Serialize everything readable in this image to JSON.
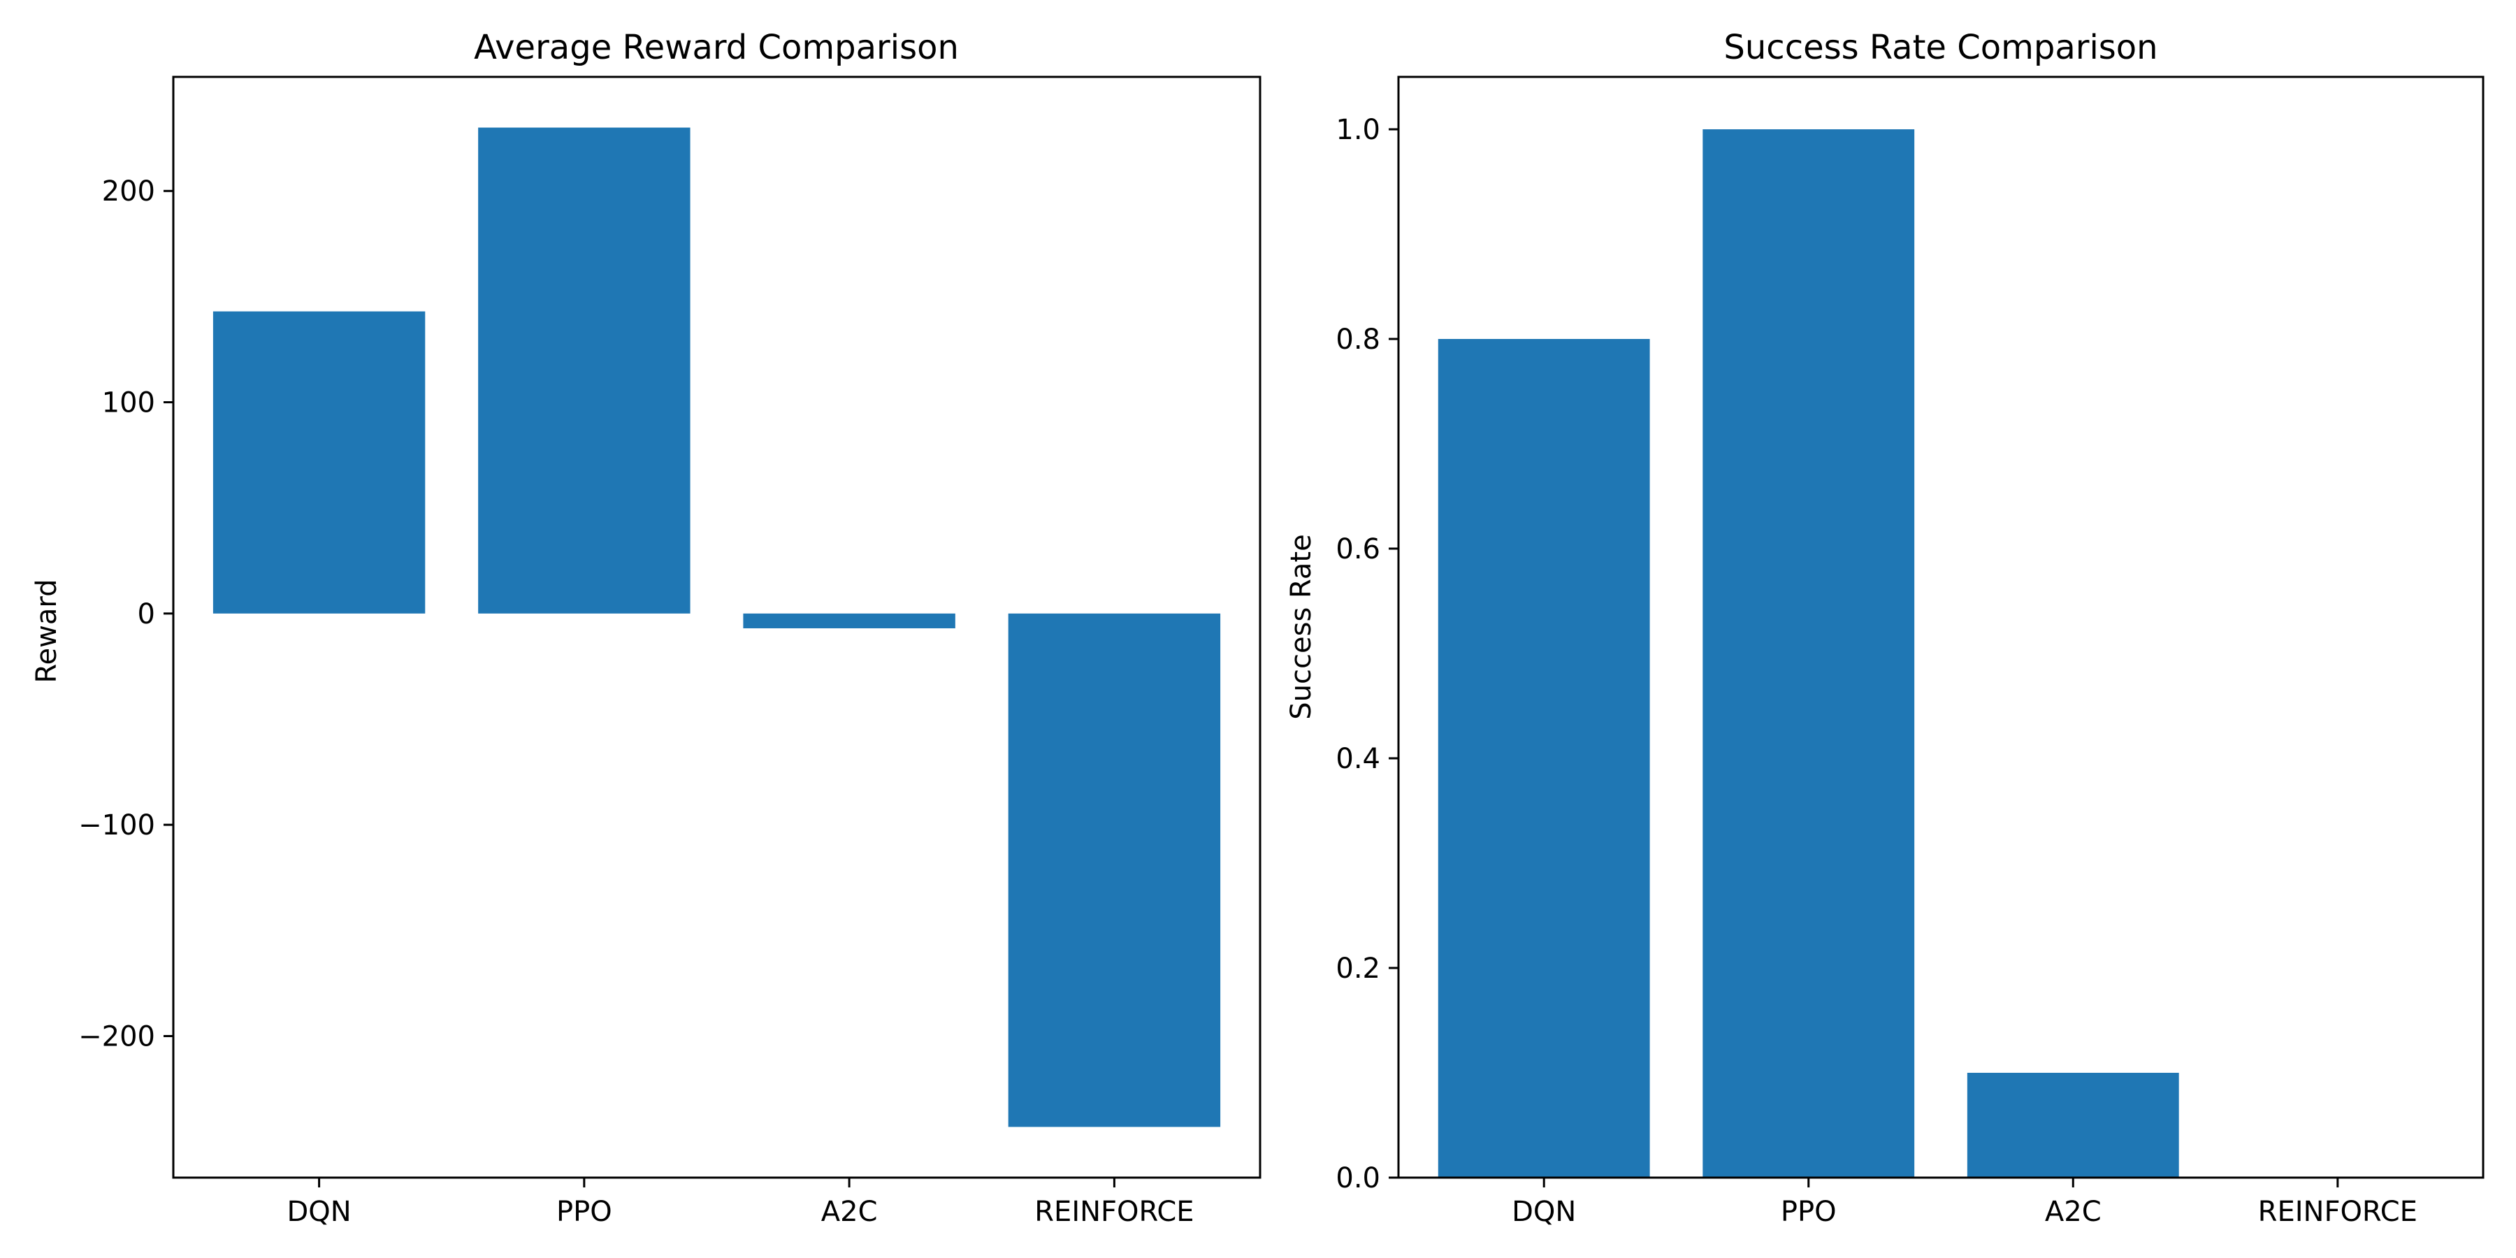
{
  "chart_data": [
    {
      "type": "bar",
      "title": "Average Reward Comparison",
      "xlabel": "",
      "ylabel": "Reward",
      "categories": [
        "DQN",
        "PPO",
        "A2C",
        "REINFORCE"
      ],
      "values": [
        143,
        230,
        -7,
        -243
      ],
      "ylim": [
        -267,
        254
      ],
      "yticks": [
        -200,
        -100,
        0,
        100,
        200
      ],
      "ytick_labels": [
        "−200",
        "−100",
        "0",
        "100",
        "200"
      ],
      "grid": false,
      "color": "#1f77b4"
    },
    {
      "type": "bar",
      "title": "Success Rate Comparison",
      "xlabel": "",
      "ylabel": "Success Rate",
      "categories": [
        "DQN",
        "PPO",
        "A2C",
        "REINFORCE"
      ],
      "values": [
        0.8,
        1.0,
        0.1,
        0.0
      ],
      "ylim": [
        0,
        1.05
      ],
      "yticks": [
        0.0,
        0.2,
        0.4,
        0.6,
        0.8,
        1.0
      ],
      "ytick_labels": [
        "0.0",
        "0.2",
        "0.4",
        "0.6",
        "0.8",
        "1.0"
      ],
      "grid": false,
      "color": "#1f77b4"
    }
  ]
}
